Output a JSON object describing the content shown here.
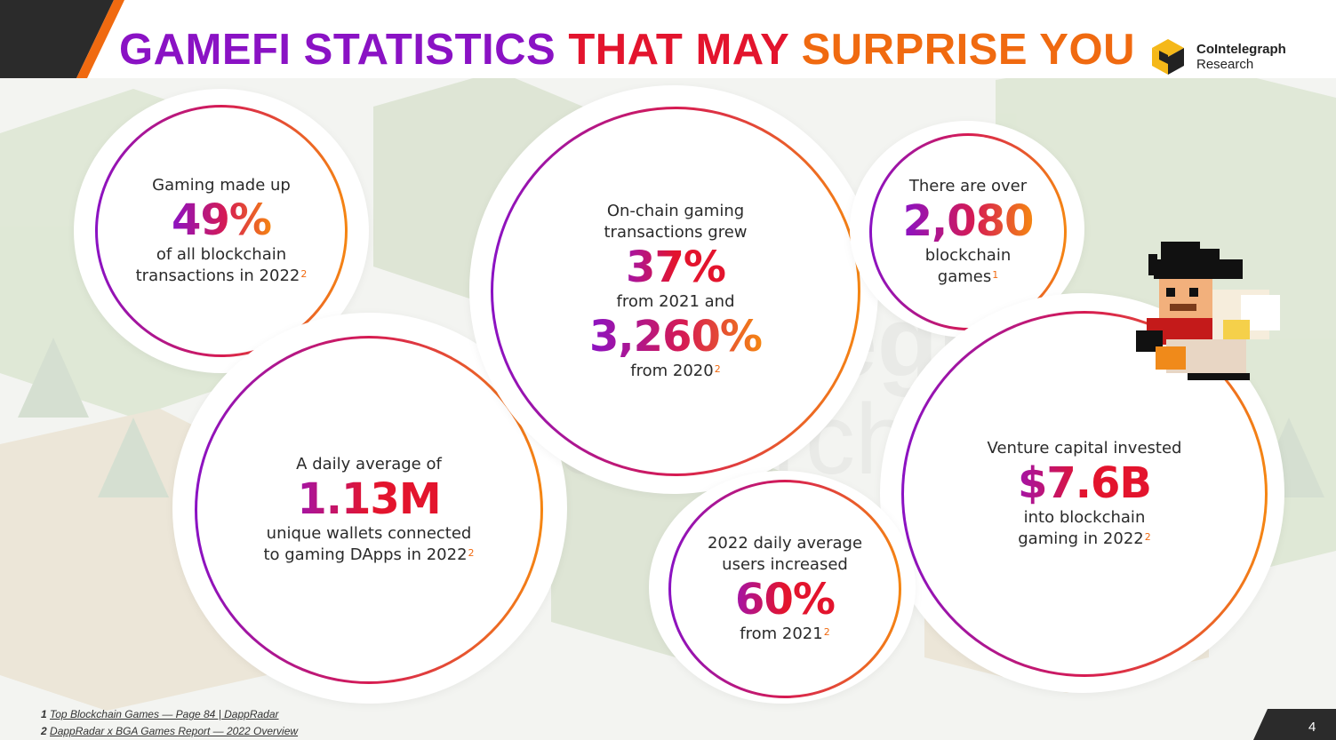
{
  "header": {
    "title_part1": "GAMEFI STATISTICS ",
    "title_part2": "THAT MAY ",
    "title_part3": "SURPRISE YOU"
  },
  "logo": {
    "name": "CoIntelegraph",
    "sub": "Research",
    "colors": [
      "#f5b819",
      "#222222"
    ]
  },
  "watermark": {
    "line1": "CoIntelegraph",
    "line2": "Research"
  },
  "stats": [
    {
      "pre": "Gaming made up",
      "value": "49%",
      "post1": "of all blockchain",
      "post2": "transactions in 2022",
      "ref": "2"
    },
    {
      "pre1": "On-chain gaming",
      "pre2": "transactions grew",
      "value1": "37%",
      "mid": "from 2021 and",
      "value2": "3,260%",
      "post": "from 2020",
      "ref": "2"
    },
    {
      "pre": "There are over",
      "value": "2,080",
      "post1": "blockchain",
      "post2": "games",
      "ref": "1"
    },
    {
      "pre": "A daily average of",
      "value": "1.13M",
      "post1": "unique wallets connected",
      "post2": "to gaming DApps in 2022",
      "ref": "2"
    },
    {
      "pre1": "2022 daily average",
      "pre2": "users increased",
      "value": "60%",
      "post": "from 2021",
      "ref": "2"
    },
    {
      "pre": "Venture capital invested",
      "value": "$7.6B",
      "post1": "into blockchain",
      "post2": "gaming in 2022",
      "ref": "2"
    }
  ],
  "footnotes": [
    {
      "num": "1",
      "text": "Top Blockchain Games — Page 84 | DappRadar"
    },
    {
      "num": "2",
      "text": "DappRadar x BGA Games Report — 2022 Overview"
    }
  ],
  "page_number": "4",
  "colors": {
    "purple": "#8a12c4",
    "red": "#e3142d",
    "orange": "#f06a10",
    "dark": "#222222"
  }
}
